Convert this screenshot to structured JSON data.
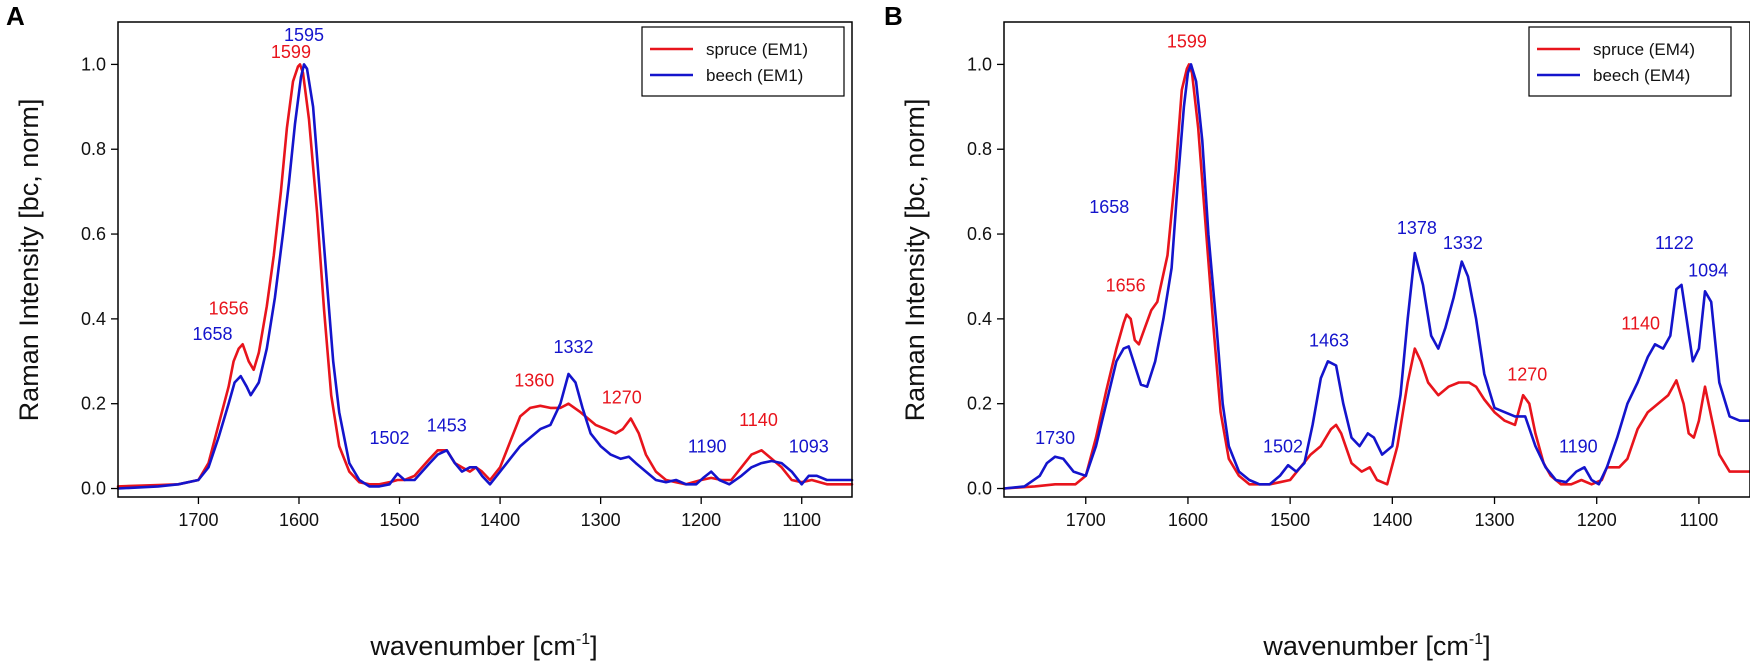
{
  "chart_data": [
    {
      "panel": "A",
      "type": "line",
      "xlabel": "wavenumber [cm",
      "xlabel_sup": "-1",
      "xlabel_close": "]",
      "ylabel": "Raman Intensity [bc, norm]",
      "xlim": [
        1780,
        1050
      ],
      "ylim": [
        -0.02,
        1.1
      ],
      "xticks": [
        1700,
        1600,
        1500,
        1400,
        1300,
        1200,
        1100
      ],
      "yticks": [
        "0.0",
        "0.2",
        "0.4",
        "0.6",
        "0.8",
        "1.0"
      ],
      "series": [
        {
          "name": "spruce (EM1)",
          "color": "#e8141c",
          "x": [
            1780,
            1740,
            1720,
            1700,
            1690,
            1680,
            1670,
            1665,
            1660,
            1656,
            1650,
            1645,
            1640,
            1632,
            1625,
            1618,
            1612,
            1606,
            1601,
            1599,
            1596,
            1590,
            1582,
            1575,
            1568,
            1560,
            1550,
            1540,
            1530,
            1520,
            1510,
            1502,
            1495,
            1485,
            1470,
            1462,
            1453,
            1445,
            1438,
            1430,
            1424,
            1418,
            1410,
            1400,
            1390,
            1380,
            1370,
            1360,
            1350,
            1340,
            1332,
            1320,
            1305,
            1295,
            1285,
            1278,
            1270,
            1262,
            1255,
            1245,
            1235,
            1225,
            1215,
            1200,
            1190,
            1180,
            1170,
            1160,
            1150,
            1140,
            1130,
            1120,
            1110,
            1100,
            1090,
            1075,
            1060,
            1050
          ],
          "y": [
            0.005,
            0.008,
            0.01,
            0.02,
            0.06,
            0.15,
            0.24,
            0.3,
            0.33,
            0.34,
            0.3,
            0.28,
            0.32,
            0.43,
            0.55,
            0.7,
            0.85,
            0.96,
            0.995,
            1.0,
            0.98,
            0.87,
            0.65,
            0.42,
            0.22,
            0.1,
            0.04,
            0.015,
            0.01,
            0.01,
            0.015,
            0.02,
            0.02,
            0.03,
            0.07,
            0.09,
            0.09,
            0.06,
            0.05,
            0.04,
            0.05,
            0.04,
            0.02,
            0.05,
            0.11,
            0.17,
            0.19,
            0.195,
            0.19,
            0.19,
            0.2,
            0.18,
            0.15,
            0.14,
            0.13,
            0.14,
            0.165,
            0.13,
            0.08,
            0.04,
            0.02,
            0.015,
            0.01,
            0.02,
            0.025,
            0.02,
            0.02,
            0.05,
            0.08,
            0.09,
            0.07,
            0.05,
            0.02,
            0.015,
            0.02,
            0.01,
            0.01,
            0.01
          ]
        },
        {
          "name": "beech (EM1)",
          "color": "#1414cc",
          "x": [
            1780,
            1740,
            1720,
            1700,
            1690,
            1680,
            1670,
            1664,
            1658,
            1652,
            1648,
            1640,
            1632,
            1624,
            1616,
            1610,
            1604,
            1598,
            1595,
            1592,
            1586,
            1580,
            1572,
            1566,
            1560,
            1550,
            1540,
            1530,
            1520,
            1510,
            1502,
            1495,
            1485,
            1470,
            1462,
            1453,
            1445,
            1438,
            1430,
            1424,
            1418,
            1410,
            1400,
            1390,
            1380,
            1370,
            1360,
            1350,
            1340,
            1332,
            1325,
            1318,
            1310,
            1300,
            1290,
            1280,
            1272,
            1265,
            1255,
            1245,
            1235,
            1225,
            1215,
            1205,
            1198,
            1190,
            1182,
            1172,
            1160,
            1150,
            1140,
            1130,
            1120,
            1110,
            1100,
            1093,
            1085,
            1075,
            1060,
            1050
          ],
          "y": [
            0.0,
            0.005,
            0.01,
            0.02,
            0.05,
            0.12,
            0.2,
            0.25,
            0.265,
            0.24,
            0.22,
            0.25,
            0.33,
            0.45,
            0.6,
            0.72,
            0.86,
            0.97,
            1.0,
            0.99,
            0.9,
            0.72,
            0.48,
            0.3,
            0.18,
            0.06,
            0.02,
            0.005,
            0.005,
            0.01,
            0.035,
            0.02,
            0.02,
            0.06,
            0.08,
            0.09,
            0.06,
            0.04,
            0.05,
            0.05,
            0.03,
            0.01,
            0.04,
            0.07,
            0.1,
            0.12,
            0.14,
            0.15,
            0.2,
            0.27,
            0.25,
            0.19,
            0.13,
            0.1,
            0.08,
            0.07,
            0.075,
            0.06,
            0.04,
            0.02,
            0.015,
            0.02,
            0.01,
            0.01,
            0.025,
            0.04,
            0.02,
            0.01,
            0.03,
            0.05,
            0.06,
            0.065,
            0.06,
            0.04,
            0.01,
            0.03,
            0.03,
            0.02,
            0.02,
            0.02
          ]
        }
      ],
      "annotations": [
        {
          "text": "1595",
          "x": 1595,
          "y": 1.055,
          "color": "#1414cc"
        },
        {
          "text": "1599",
          "x": 1608,
          "y": 1.015,
          "color": "#e8141c"
        },
        {
          "text": "1656",
          "x": 1670,
          "y": 0.41,
          "color": "#e8141c"
        },
        {
          "text": "1658",
          "x": 1686,
          "y": 0.35,
          "color": "#1414cc"
        },
        {
          "text": "1332",
          "x": 1327,
          "y": 0.32,
          "color": "#1414cc"
        },
        {
          "text": "1360",
          "x": 1366,
          "y": 0.24,
          "color": "#e8141c"
        },
        {
          "text": "1270",
          "x": 1279,
          "y": 0.2,
          "color": "#e8141c"
        },
        {
          "text": "1502",
          "x": 1510,
          "y": 0.105,
          "color": "#1414cc"
        },
        {
          "text": "1453",
          "x": 1453,
          "y": 0.135,
          "color": "#1414cc"
        },
        {
          "text": "1190",
          "x": 1194,
          "y": 0.085,
          "color": "#1414cc"
        },
        {
          "text": "1140",
          "x": 1143,
          "y": 0.148,
          "color": "#e8141c"
        },
        {
          "text": "1093",
          "x": 1093,
          "y": 0.085,
          "color": "#1414cc"
        }
      ]
    },
    {
      "panel": "B",
      "type": "line",
      "xlabel": "wavenumber [cm",
      "xlabel_sup": "-1",
      "xlabel_close": "]",
      "ylabel": "Raman Intensity [bc, norm]",
      "xlim": [
        1780,
        1050
      ],
      "ylim": [
        -0.02,
        1.1
      ],
      "xticks": [
        1700,
        1600,
        1500,
        1400,
        1300,
        1200,
        1100
      ],
      "yticks": [
        "0.0",
        "0.2",
        "0.4",
        "0.6",
        "0.8",
        "1.0"
      ],
      "series": [
        {
          "name": "spruce (EM4)",
          "color": "#e8141c",
          "x": [
            1780,
            1750,
            1730,
            1710,
            1700,
            1690,
            1680,
            1670,
            1663,
            1660,
            1656,
            1652,
            1648,
            1642,
            1636,
            1630,
            1620,
            1612,
            1606,
            1601,
            1599,
            1596,
            1590,
            1582,
            1575,
            1568,
            1560,
            1550,
            1540,
            1530,
            1520,
            1510,
            1500,
            1490,
            1480,
            1470,
            1460,
            1455,
            1450,
            1440,
            1430,
            1422,
            1415,
            1405,
            1395,
            1385,
            1378,
            1372,
            1365,
            1355,
            1345,
            1335,
            1325,
            1318,
            1310,
            1300,
            1290,
            1280,
            1272,
            1266,
            1260,
            1252,
            1245,
            1235,
            1225,
            1215,
            1205,
            1195,
            1190,
            1185,
            1178,
            1170,
            1160,
            1150,
            1140,
            1130,
            1122,
            1115,
            1110,
            1105,
            1100,
            1094,
            1088,
            1080,
            1070,
            1060,
            1050
          ],
          "y": [
            0.0,
            0.005,
            0.01,
            0.01,
            0.03,
            0.12,
            0.23,
            0.33,
            0.39,
            0.41,
            0.4,
            0.35,
            0.34,
            0.38,
            0.42,
            0.44,
            0.55,
            0.75,
            0.94,
            0.99,
            1.0,
            0.98,
            0.85,
            0.6,
            0.38,
            0.18,
            0.07,
            0.03,
            0.01,
            0.01,
            0.01,
            0.015,
            0.02,
            0.05,
            0.08,
            0.1,
            0.14,
            0.15,
            0.13,
            0.06,
            0.04,
            0.05,
            0.02,
            0.01,
            0.1,
            0.25,
            0.33,
            0.3,
            0.25,
            0.22,
            0.24,
            0.25,
            0.25,
            0.24,
            0.21,
            0.18,
            0.16,
            0.15,
            0.22,
            0.2,
            0.13,
            0.06,
            0.03,
            0.01,
            0.01,
            0.02,
            0.01,
            0.02,
            0.05,
            0.05,
            0.05,
            0.07,
            0.14,
            0.18,
            0.2,
            0.22,
            0.255,
            0.2,
            0.13,
            0.12,
            0.16,
            0.24,
            0.17,
            0.08,
            0.04,
            0.04,
            0.04
          ]
        },
        {
          "name": "beech (EM4)",
          "color": "#1414cc",
          "x": [
            1780,
            1760,
            1745,
            1738,
            1730,
            1722,
            1712,
            1700,
            1690,
            1680,
            1670,
            1663,
            1658,
            1652,
            1646,
            1640,
            1632,
            1624,
            1616,
            1610,
            1604,
            1600,
            1597,
            1592,
            1586,
            1580,
            1572,
            1566,
            1560,
            1550,
            1540,
            1530,
            1520,
            1510,
            1502,
            1494,
            1486,
            1478,
            1470,
            1463,
            1455,
            1448,
            1440,
            1432,
            1424,
            1418,
            1410,
            1400,
            1392,
            1385,
            1378,
            1370,
            1362,
            1355,
            1348,
            1340,
            1332,
            1326,
            1318,
            1310,
            1300,
            1290,
            1280,
            1270,
            1260,
            1250,
            1240,
            1230,
            1220,
            1212,
            1205,
            1198,
            1190,
            1180,
            1170,
            1160,
            1150,
            1143,
            1135,
            1128,
            1122,
            1117,
            1112,
            1106,
            1100,
            1094,
            1088,
            1080,
            1070,
            1060,
            1050
          ],
          "y": [
            0.0,
            0.005,
            0.03,
            0.06,
            0.075,
            0.07,
            0.04,
            0.03,
            0.1,
            0.2,
            0.3,
            0.33,
            0.335,
            0.29,
            0.245,
            0.24,
            0.3,
            0.4,
            0.52,
            0.72,
            0.9,
            0.98,
            1.0,
            0.96,
            0.82,
            0.6,
            0.38,
            0.2,
            0.1,
            0.04,
            0.02,
            0.01,
            0.01,
            0.03,
            0.055,
            0.04,
            0.06,
            0.15,
            0.26,
            0.3,
            0.29,
            0.2,
            0.12,
            0.1,
            0.13,
            0.12,
            0.08,
            0.1,
            0.22,
            0.4,
            0.555,
            0.48,
            0.36,
            0.33,
            0.38,
            0.45,
            0.535,
            0.5,
            0.4,
            0.27,
            0.19,
            0.18,
            0.17,
            0.17,
            0.1,
            0.05,
            0.02,
            0.015,
            0.04,
            0.05,
            0.02,
            0.01,
            0.05,
            0.12,
            0.2,
            0.25,
            0.31,
            0.34,
            0.33,
            0.36,
            0.47,
            0.48,
            0.4,
            0.3,
            0.33,
            0.465,
            0.44,
            0.25,
            0.17,
            0.16,
            0.16
          ]
        }
      ],
      "annotations": [
        {
          "text": "1599",
          "x": 1601,
          "y": 1.04,
          "color": "#e8141c"
        },
        {
          "text": "1658",
          "x": 1677,
          "y": 0.65,
          "color": "#1414cc"
        },
        {
          "text": "1656",
          "x": 1661,
          "y": 0.465,
          "color": "#e8141c"
        },
        {
          "text": "1730",
          "x": 1730,
          "y": 0.105,
          "color": "#1414cc"
        },
        {
          "text": "1502",
          "x": 1507,
          "y": 0.085,
          "color": "#1414cc"
        },
        {
          "text": "1463",
          "x": 1462,
          "y": 0.335,
          "color": "#1414cc"
        },
        {
          "text": "1378",
          "x": 1376,
          "y": 0.6,
          "color": "#1414cc"
        },
        {
          "text": "1332",
          "x": 1331,
          "y": 0.565,
          "color": "#1414cc"
        },
        {
          "text": "1270",
          "x": 1268,
          "y": 0.255,
          "color": "#e8141c"
        },
        {
          "text": "1190",
          "x": 1218,
          "y": 0.085,
          "color": "#1414cc"
        },
        {
          "text": "1140",
          "x": 1157,
          "y": 0.375,
          "color": "#e8141c"
        },
        {
          "text": "1122",
          "x": 1124,
          "y": 0.565,
          "color": "#1414cc"
        },
        {
          "text": "1094",
          "x": 1091,
          "y": 0.5,
          "color": "#1414cc"
        }
      ]
    }
  ]
}
